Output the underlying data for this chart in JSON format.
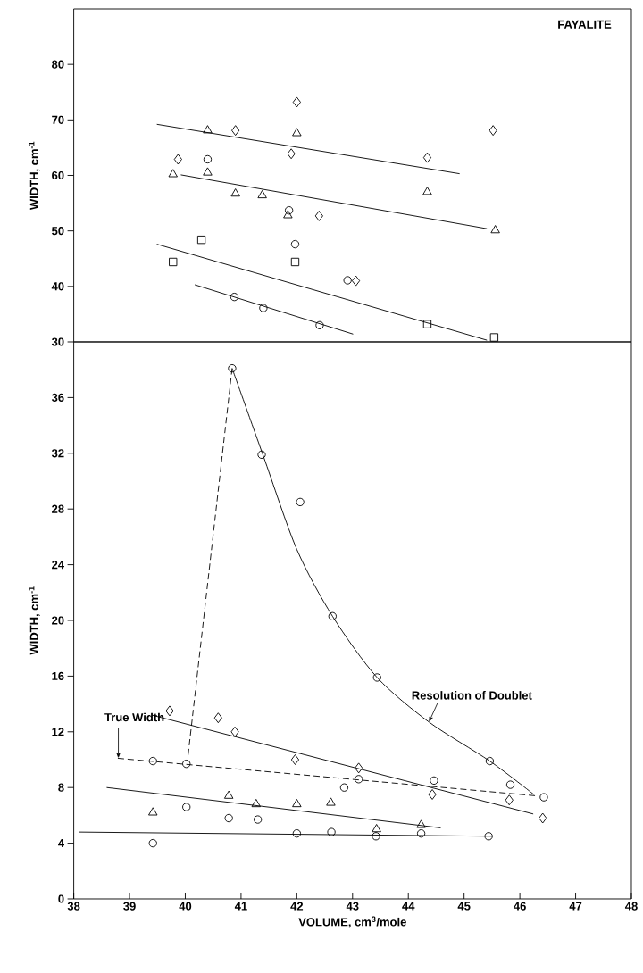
{
  "chart_data": [
    {
      "type": "scatter",
      "annotations": [
        "FAYALITE"
      ],
      "ylabel": "WIDTH, cm$^{-1}$",
      "xlim": [
        38,
        48
      ],
      "ylim": [
        30,
        90
      ],
      "yticks": [
        30,
        40,
        50,
        60,
        70,
        80
      ],
      "tick_labels": "y",
      "series": [
        {
          "color": "#000000",
          "marker": "diamond",
          "x": [
            39.87,
            40.9,
            42.0,
            41.9,
            42.4,
            43.06,
            44.34,
            45.52
          ],
          "values": [
            62.9,
            68.1,
            73.2,
            63.9,
            52.7,
            41.0,
            63.2,
            68.1
          ]
        },
        {
          "color": "#000000",
          "marker": "triangle",
          "x": [
            39.78,
            40.4,
            40.4,
            40.9,
            41.38,
            41.84,
            42.0,
            44.34,
            45.56
          ],
          "values": [
            60.2,
            68.1,
            60.5,
            56.7,
            56.4,
            52.8,
            67.6,
            57.0,
            50.1
          ]
        },
        {
          "color": "#000000",
          "marker": "circle",
          "x": [
            40.4,
            41.86,
            41.97,
            42.91,
            40.88,
            41.4,
            42.41
          ],
          "values": [
            62.9,
            53.7,
            47.6,
            41.1,
            38.1,
            36.1,
            33.0
          ]
        },
        {
          "color": "#000000",
          "marker": "square",
          "x": [
            39.78,
            40.29,
            41.97,
            44.34,
            45.54
          ],
          "values": [
            44.4,
            48.4,
            44.4,
            33.2,
            30.8
          ]
        },
        {
          "type": "line",
          "color": "#000000",
          "x": [
            39.49,
            44.92
          ],
          "values": [
            69.2,
            60.3
          ]
        },
        {
          "type": "line",
          "color": "#000000",
          "x": [
            39.92,
            45.41
          ],
          "values": [
            60.1,
            50.4
          ]
        },
        {
          "type": "line",
          "color": "#000000",
          "x": [
            39.49,
            45.41
          ],
          "values": [
            47.6,
            30.3
          ]
        },
        {
          "type": "line",
          "color": "#000000",
          "x": [
            40.17,
            43.01
          ],
          "values": [
            40.3,
            31.4
          ]
        }
      ]
    },
    {
      "type": "scatter",
      "xlabel": "VOLUME, cm$^{3}$/mole",
      "ylabel": "WIDTH, cm$^{-1}$",
      "xlim": [
        38,
        48
      ],
      "ylim": [
        0,
        40
      ],
      "xticks": [
        38,
        39,
        40,
        41,
        42,
        43,
        44,
        45,
        46,
        47,
        48
      ],
      "yticks": [
        0,
        4,
        8,
        12,
        16,
        20,
        24,
        28,
        32,
        36
      ],
      "annotations": [
        {
          "text": "True Width",
          "x": 38.8,
          "y": 10.1
        },
        {
          "text": "Resolution of Doublet",
          "x": 44.37,
          "y": 12.7
        }
      ],
      "series": [
        {
          "color": "#000000",
          "marker": "circle",
          "x": [
            40.84,
            41.37,
            42.06,
            42.64,
            43.44,
            45.46,
            46.43
          ],
          "values": [
            38.1,
            31.9,
            28.5,
            20.3,
            15.9,
            9.9,
            7.3
          ]
        },
        {
          "color": "#000000",
          "marker": "circle",
          "x": [
            39.42,
            40.02,
            42.85,
            43.11,
            44.46,
            45.83
          ],
          "values": [
            9.9,
            9.7,
            8.0,
            8.6,
            8.5,
            8.2
          ]
        },
        {
          "color": "#000000",
          "marker": "diamond",
          "x": [
            39.72,
            40.59,
            40.89,
            41.97,
            43.11,
            44.43,
            45.81,
            46.41
          ],
          "values": [
            13.5,
            13.0,
            12.0,
            10.0,
            9.4,
            7.5,
            7.1,
            5.8
          ]
        },
        {
          "color": "#000000",
          "marker": "triangle",
          "x": [
            39.42,
            40.78,
            41.27,
            42.0,
            42.61,
            43.43,
            44.23
          ],
          "values": [
            6.2,
            7.4,
            6.8,
            6.8,
            6.9,
            5.0,
            5.3
          ]
        },
        {
          "color": "#000000",
          "marker": "circle",
          "x": [
            39.42,
            40.02,
            40.78,
            41.3,
            42.0,
            42.62,
            43.42,
            44.23,
            45.44
          ],
          "values": [
            4.0,
            6.6,
            5.8,
            5.7,
            4.7,
            4.8,
            4.5,
            4.7,
            4.5
          ]
        },
        {
          "type": "line",
          "color": "#000000",
          "x": [
            40.84,
            41.4,
            42.0,
            42.64,
            43.44,
            44.37,
            45.46,
            46.25
          ],
          "values": [
            38.1,
            31.8,
            25.1,
            20.3,
            15.9,
            12.7,
            9.9,
            7.5
          ]
        },
        {
          "type": "line",
          "color": "#000000",
          "line_style": "dashed",
          "x": [
            40.84,
            40.05
          ],
          "values": [
            38.1,
            10.3
          ]
        },
        {
          "type": "line",
          "color": "#000000",
          "line_style": "dashed",
          "x": [
            38.79,
            46.3
          ],
          "values": [
            10.1,
            7.4
          ]
        },
        {
          "type": "line",
          "color": "#000000",
          "x": [
            39.4,
            46.24
          ],
          "values": [
            13.2,
            6.1
          ]
        },
        {
          "type": "line",
          "color": "#000000",
          "x": [
            38.59,
            44.58
          ],
          "values": [
            8.0,
            5.1
          ]
        },
        {
          "type": "line",
          "color": "#000000",
          "x": [
            38.1,
            45.5
          ],
          "values": [
            4.8,
            4.5
          ]
        }
      ]
    }
  ]
}
